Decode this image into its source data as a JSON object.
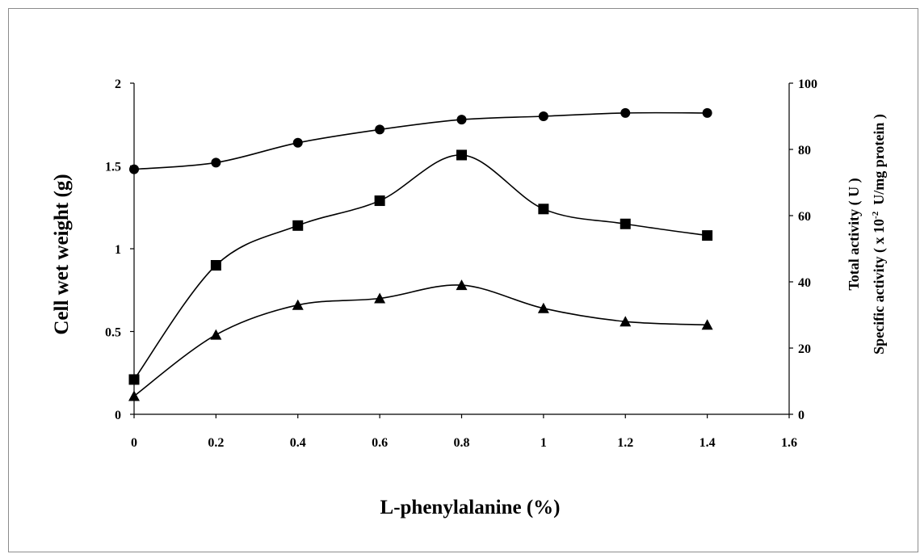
{
  "chart_data": {
    "type": "line",
    "title": "",
    "xlabel": "L-phenylalanine (%)",
    "ylabel_left": "Cell wet weight  (g)",
    "ylabel_right_line1": "Total activity ( U )",
    "ylabel_right_line2_prefix": "Specific activity ( x  10",
    "ylabel_right_line2_exp": "-2",
    "ylabel_right_line2_suffix": "U/mg protein )",
    "xlim": [
      0,
      1.6
    ],
    "ylim_left": [
      0,
      2
    ],
    "ylim_right": [
      0,
      100
    ],
    "x_ticks": [
      "0",
      "0.2",
      "0.4",
      "0.6",
      "0.8",
      "1",
      "1.2",
      "1.4",
      "1.6"
    ],
    "y_left_ticks": [
      "0",
      "0.5",
      "1",
      "1.5",
      "2"
    ],
    "y_right_ticks": [
      "0",
      "20",
      "40",
      "60",
      "80",
      "100"
    ],
    "grid": false,
    "legend": "none",
    "x": [
      0,
      0.2,
      0.4,
      0.6,
      0.8,
      1.0,
      1.2,
      1.4
    ],
    "series": [
      {
        "marker": "circle",
        "axis": "left",
        "values": [
          1.48,
          1.52,
          1.64,
          1.72,
          1.78,
          1.8,
          1.82,
          1.82
        ]
      },
      {
        "marker": "square",
        "axis": "right",
        "values": [
          10.5,
          45,
          57,
          64.5,
          78.3,
          62,
          57.5,
          54
        ]
      },
      {
        "marker": "triangle",
        "axis": "right",
        "values": [
          5.5,
          24,
          33,
          35,
          39,
          32,
          28,
          27
        ]
      }
    ]
  }
}
